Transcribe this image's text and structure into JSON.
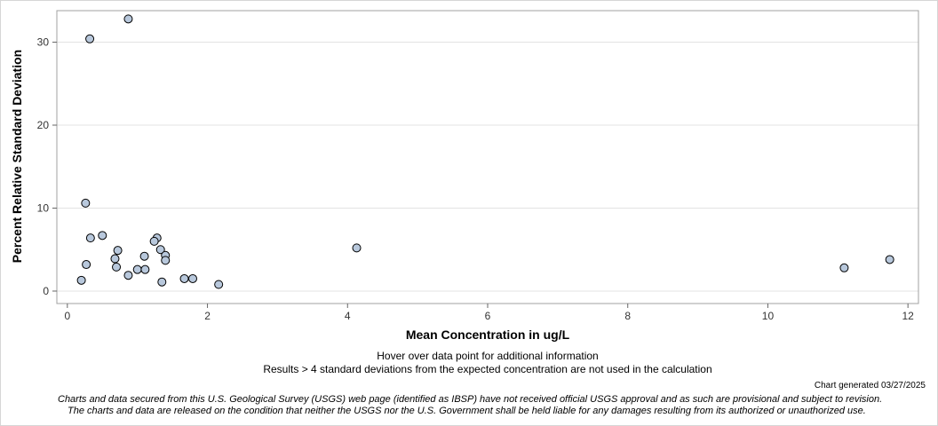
{
  "chart_data": {
    "type": "scatter",
    "xlabel": "Mean Concentration in ug/L",
    "ylabel": "Percent Relative Standard Deviation",
    "xlim": [
      -0.15,
      12.15
    ],
    "ylim": [
      -1.5,
      33.8
    ],
    "x_ticks": [
      0,
      2,
      4,
      6,
      8,
      10,
      12
    ],
    "y_ticks": [
      0,
      10,
      20,
      30
    ],
    "grid": "horizontal",
    "marker_fill": "#b8c8dc",
    "marker_edge": "#000000",
    "points": [
      {
        "x": 0.87,
        "y": 32.8
      },
      {
        "x": 0.32,
        "y": 30.4
      },
      {
        "x": 0.26,
        "y": 10.6
      },
      {
        "x": 0.5,
        "y": 6.7
      },
      {
        "x": 0.33,
        "y": 6.4
      },
      {
        "x": 1.28,
        "y": 6.4
      },
      {
        "x": 1.24,
        "y": 6.0
      },
      {
        "x": 1.33,
        "y": 5.0
      },
      {
        "x": 0.72,
        "y": 4.9
      },
      {
        "x": 1.4,
        "y": 4.3
      },
      {
        "x": 1.1,
        "y": 4.2
      },
      {
        "x": 0.68,
        "y": 3.9
      },
      {
        "x": 1.4,
        "y": 3.7
      },
      {
        "x": 0.27,
        "y": 3.2
      },
      {
        "x": 0.7,
        "y": 2.9
      },
      {
        "x": 1.0,
        "y": 2.6
      },
      {
        "x": 1.11,
        "y": 2.6
      },
      {
        "x": 0.87,
        "y": 1.9
      },
      {
        "x": 1.67,
        "y": 1.5
      },
      {
        "x": 1.79,
        "y": 1.5
      },
      {
        "x": 0.2,
        "y": 1.3
      },
      {
        "x": 1.35,
        "y": 1.1
      },
      {
        "x": 2.16,
        "y": 0.8
      },
      {
        "x": 4.13,
        "y": 5.2
      },
      {
        "x": 11.09,
        "y": 2.8
      },
      {
        "x": 11.74,
        "y": 3.8
      }
    ]
  },
  "notes": {
    "hover": "Hover over data point for additional information",
    "results": "Results > 4 standard deviations from the expected concentration are not used in the calculation"
  },
  "generated": "Chart generated 03/27/2025",
  "disclaimer": {
    "line1": "Charts and data secured from this U.S. Geological Survey (USGS) web page (identified as IBSP) have not received official USGS approval and as such are provisional and subject to revision.",
    "line2": "The charts and data are released on the condition that neither the USGS nor the U.S. Government shall be held liable for any damages resulting from its authorized or unauthorized use."
  }
}
